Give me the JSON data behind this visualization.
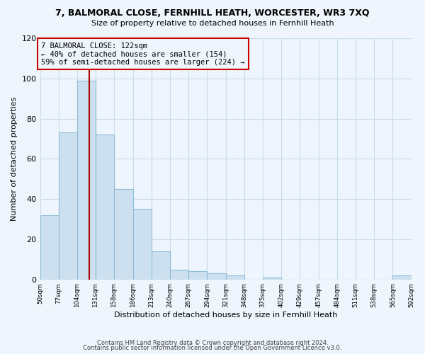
{
  "title": "7, BALMORAL CLOSE, FERNHILL HEATH, WORCESTER, WR3 7XQ",
  "subtitle": "Size of property relative to detached houses in Fernhill Heath",
  "xlabel": "Distribution of detached houses by size in Fernhill Heath",
  "ylabel": "Number of detached properties",
  "bar_color": "#cce0f0",
  "bar_edge_color": "#90bcd8",
  "grid_color": "#c8dce8",
  "bg_color": "#eef5fc",
  "bin_edges": [
    50,
    77,
    104,
    131,
    158,
    186,
    213,
    240,
    267,
    294,
    321,
    348,
    375,
    402,
    429,
    457,
    484,
    511,
    538,
    565,
    592
  ],
  "bin_labels": [
    "50sqm",
    "77sqm",
    "104sqm",
    "131sqm",
    "158sqm",
    "186sqm",
    "213sqm",
    "240sqm",
    "267sqm",
    "294sqm",
    "321sqm",
    "348sqm",
    "375sqm",
    "402sqm",
    "429sqm",
    "457sqm",
    "484sqm",
    "511sqm",
    "538sqm",
    "565sqm",
    "592sqm"
  ],
  "counts": [
    32,
    73,
    99,
    72,
    45,
    35,
    14,
    5,
    4,
    3,
    2,
    0,
    1,
    0,
    0,
    0,
    0,
    0,
    0,
    2
  ],
  "property_size": 122,
  "property_line_color": "#aa0000",
  "annotation_box_edge": "#cc0000",
  "annotation_text": "7 BALMORAL CLOSE: 122sqm\n← 40% of detached houses are smaller (154)\n59% of semi-detached houses are larger (224) →",
  "footer1": "Contains HM Land Registry data © Crown copyright and database right 2024.",
  "footer2": "Contains public sector information licensed under the Open Government Licence v3.0.",
  "ylim": [
    0,
    120
  ],
  "yticks": [
    0,
    20,
    40,
    60,
    80,
    100,
    120
  ]
}
